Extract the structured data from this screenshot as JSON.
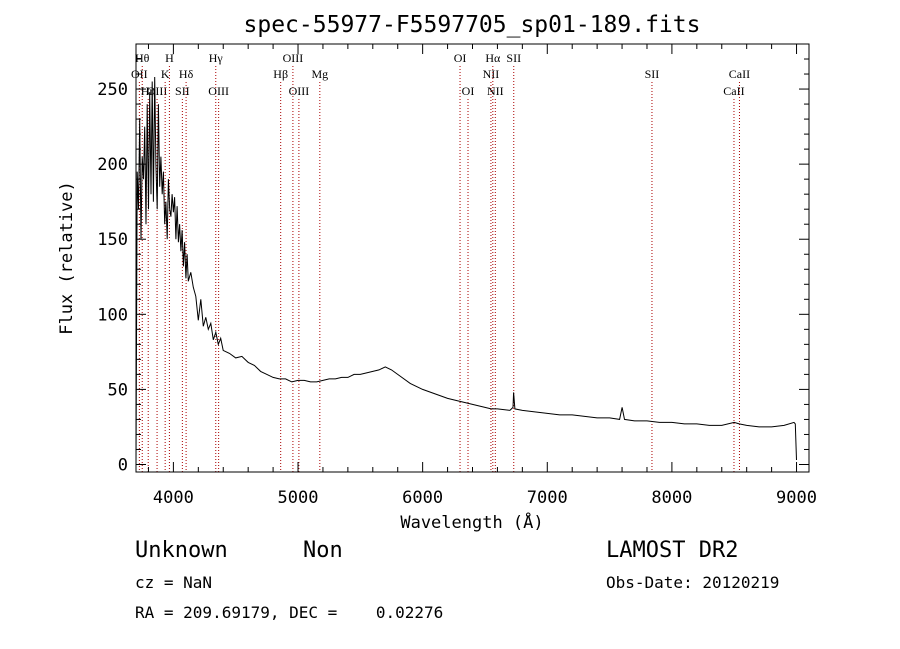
{
  "title": "spec-55977-F5597705_sp01-189.fits",
  "footer": {
    "class_text": "Unknown",
    "subclass_text": "Non",
    "survey": "LAMOST DR2",
    "cz_text": "cz = NaN",
    "obs_date": "Obs-Date: 20120219",
    "coords_text": "RA = 209.69179, DEC =    0.02276"
  },
  "colors": {
    "line": "#000000",
    "marker": "#aa0000",
    "background": "#ffffff"
  },
  "chart_data": {
    "type": "line",
    "title": "spec-55977-F5597705_sp01-189.fits",
    "xlabel": "Wavelength (Å)",
    "ylabel": "Flux (relative)",
    "xlim": [
      3700,
      9100
    ],
    "ylim": [
      -5,
      280
    ],
    "xticks": [
      4000,
      5000,
      6000,
      7000,
      8000,
      9000
    ],
    "yticks": [
      0,
      50,
      100,
      150,
      200,
      250
    ],
    "grid": false,
    "series": [
      {
        "x": [
          3700,
          3710,
          3720,
          3730,
          3740,
          3750,
          3760,
          3770,
          3780,
          3790,
          3800,
          3810,
          3820,
          3830,
          3840,
          3850,
          3860,
          3870,
          3880,
          3890,
          3900,
          3910,
          3920,
          3930,
          3940,
          3950,
          3960,
          3970,
          3980,
          3990,
          4000,
          4010,
          4020,
          4030,
          4040,
          4050,
          4060,
          4070,
          4080,
          4090,
          4100,
          4110,
          4120,
          4140,
          4160,
          4180,
          4200,
          4220,
          4240,
          4260,
          4280,
          4300,
          4320,
          4340,
          4360,
          4380,
          4400,
          4450,
          4500,
          4550,
          4600,
          4650,
          4700,
          4750,
          4800,
          4850,
          4900,
          4950,
          5000,
          5050,
          5100,
          5150,
          5200,
          5250,
          5300,
          5350,
          5400,
          5450,
          5500,
          5550,
          5600,
          5650,
          5700,
          5750,
          5800,
          5900,
          6000,
          6100,
          6200,
          6300,
          6350,
          6400,
          6500,
          6550,
          6600,
          6700,
          6725,
          6730,
          6740,
          6800,
          6900,
          7000,
          7100,
          7200,
          7300,
          7400,
          7500,
          7580,
          7600,
          7620,
          7700,
          7800,
          7900,
          8000,
          8100,
          8200,
          8300,
          8400,
          8500,
          8540,
          8600,
          8700,
          8800,
          8900,
          8980,
          8990,
          9000
        ],
        "values": [
          0,
          195,
          170,
          230,
          150,
          205,
          190,
          225,
          160,
          240,
          170,
          248,
          180,
          255,
          175,
          258,
          200,
          170,
          240,
          185,
          205,
          180,
          195,
          160,
          175,
          150,
          190,
          170,
          165,
          180,
          168,
          178,
          150,
          172,
          148,
          160,
          142,
          156,
          132,
          148,
          124,
          140,
          122,
          128,
          118,
          112,
          96,
          110,
          92,
          98,
          90,
          94,
          83,
          88,
          80,
          84,
          76,
          74,
          71,
          72,
          68,
          66,
          62,
          60,
          58,
          57,
          57,
          55,
          56,
          56,
          55,
          55,
          56,
          57,
          57,
          58,
          58,
          60,
          60,
          61,
          62,
          63,
          65,
          63,
          60,
          54,
          50,
          47,
          44,
          42,
          41,
          40,
          38,
          37,
          37,
          36,
          38,
          48,
          37,
          36,
          35,
          34,
          33,
          33,
          32,
          31,
          31,
          30,
          38,
          30,
          29,
          29,
          28,
          28,
          27,
          27,
          26,
          26,
          28,
          27,
          26,
          25,
          25,
          26,
          28,
          27,
          3
        ]
      }
    ],
    "line_markers": [
      {
        "label": "OII",
        "x": 3727,
        "row": "a1"
      },
      {
        "label": "Hθ",
        "x": 3750,
        "row": "a0"
      },
      {
        "label": "Hη",
        "x": 3798,
        "row": "b0"
      },
      {
        "label": "OIII",
        "x": 3869,
        "row": "b0"
      },
      {
        "label": "K",
        "x": 3934,
        "row": "a1"
      },
      {
        "label": "H",
        "x": 3968,
        "row": "a0"
      },
      {
        "label": "Hδ",
        "x": 4102,
        "row": "a1"
      },
      {
        "label": "SII",
        "x": 4072,
        "row": "b0"
      },
      {
        "label": "Hγ",
        "x": 4340,
        "row": "a0"
      },
      {
        "label": "OIII",
        "x": 4363,
        "row": "b0"
      },
      {
        "label": "Hβ",
        "x": 4861,
        "row": "a1"
      },
      {
        "label": "OIII",
        "x": 4959,
        "row": "a0"
      },
      {
        "label": "OIII",
        "x": 5007,
        "row": "b0"
      },
      {
        "label": "Mg",
        "x": 5175,
        "row": "a1"
      },
      {
        "label": "OI",
        "x": 6300,
        "row": "a0"
      },
      {
        "label": "OI",
        "x": 6364,
        "row": "b0"
      },
      {
        "label": "NII",
        "x": 6548,
        "row": "a1"
      },
      {
        "label": "Hα",
        "x": 6563,
        "row": "a0"
      },
      {
        "label": "NII",
        "x": 6583,
        "row": "b0"
      },
      {
        "label": "SII",
        "x": 6731,
        "row": "a0"
      },
      {
        "label": "SII",
        "x": 7840,
        "row": "a1"
      },
      {
        "label": "CaII",
        "x": 8498,
        "row": "b0"
      },
      {
        "label": "CaII",
        "x": 8542,
        "row": "a1"
      }
    ]
  }
}
